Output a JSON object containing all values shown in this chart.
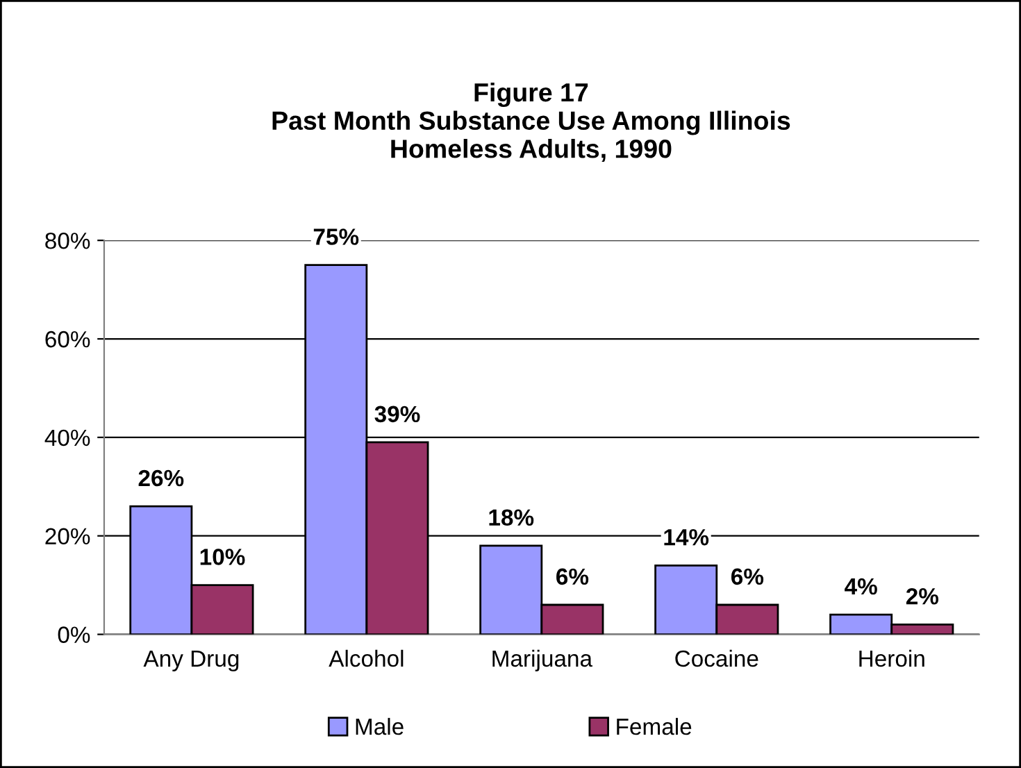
{
  "chart_data": {
    "type": "bar",
    "title": "Figure 17\nPast Month Substance Use Among Illinois\nHomeless Adults, 1990",
    "categories": [
      "Any Drug",
      "Alcohol",
      "Marijuana",
      "Cocaine",
      "Heroin"
    ],
    "series": [
      {
        "name": "Male",
        "color": "#9999ff",
        "values": [
          26,
          75,
          18,
          14,
          4
        ],
        "value_labels": [
          "26%",
          "75%",
          "18%",
          "14%",
          "4%"
        ]
      },
      {
        "name": "Female",
        "color": "#993366",
        "values": [
          10,
          39,
          6,
          6,
          2
        ],
        "value_labels": [
          "10%",
          "39%",
          "6%",
          "6%",
          "2%"
        ]
      }
    ],
    "ylim": [
      0,
      80
    ],
    "yticks": [
      {
        "value": 0,
        "label": "0%"
      },
      {
        "value": 20,
        "label": "20%"
      },
      {
        "value": 40,
        "label": "40%"
      },
      {
        "value": 60,
        "label": "60%"
      },
      {
        "value": 80,
        "label": "80%"
      }
    ],
    "grid": "y",
    "legend": "bottom"
  }
}
